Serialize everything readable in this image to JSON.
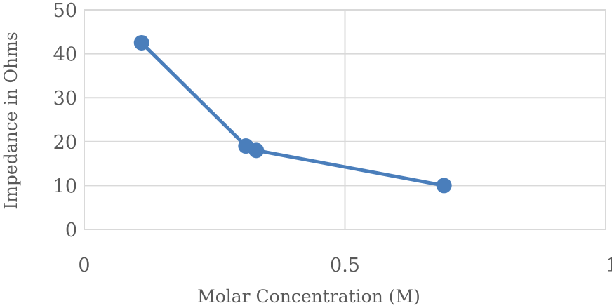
{
  "colors": {
    "series": "#4a7ebb",
    "grid": "#d9d9d9",
    "text": "#595959"
  },
  "chart_data": {
    "type": "scatter",
    "title": "",
    "xlabel": "Molar Concentration (M)",
    "ylabel": "Impedance in Ohms",
    "xlim": [
      0,
      1
    ],
    "ylim": [
      0,
      50
    ],
    "x_ticks": [
      0,
      0.5,
      1
    ],
    "x_tick_labels": [
      "0",
      "0.5",
      "1"
    ],
    "y_ticks": [
      0,
      10,
      20,
      30,
      40,
      50
    ],
    "y_tick_labels": [
      "0",
      "10",
      "20",
      "30",
      "40",
      "50"
    ],
    "grid": true,
    "legend": "none",
    "series": [
      {
        "lines": true,
        "markers": true,
        "points": [
          {
            "x": 0.11,
            "y": 42.5
          },
          {
            "x": 0.31,
            "y": 19
          },
          {
            "x": 0.33,
            "y": 18
          },
          {
            "x": 0.69,
            "y": 10
          }
        ]
      }
    ]
  }
}
